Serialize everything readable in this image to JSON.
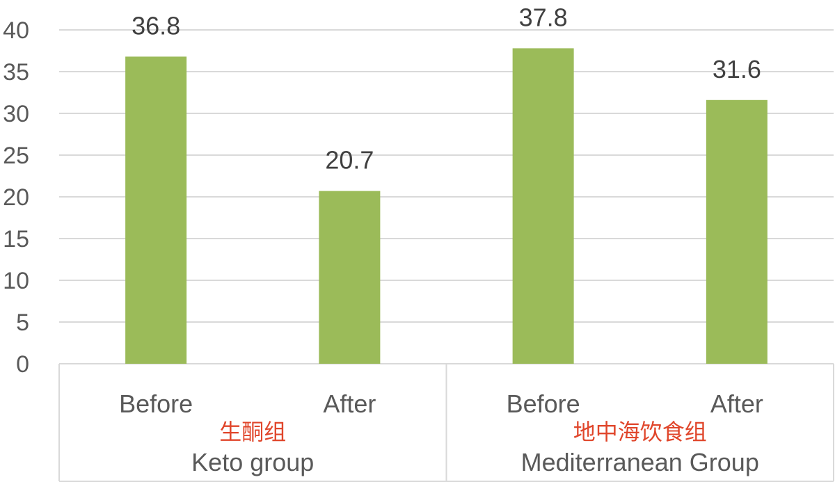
{
  "chart_data": {
    "type": "bar",
    "ylim": [
      0,
      40
    ],
    "yticks": [
      0,
      5,
      10,
      15,
      20,
      25,
      30,
      35,
      40
    ],
    "grid": true,
    "legend": "none",
    "groups": [
      {
        "name_cn": "生酮组",
        "name_en": "Keto group",
        "categories": [
          "Before",
          "After"
        ],
        "values": [
          36.8,
          20.7
        ]
      },
      {
        "name_cn": "地中海饮食组",
        "name_en": "Mediterranean Group",
        "categories": [
          "Before",
          "After"
        ],
        "values": [
          37.8,
          31.6
        ]
      }
    ]
  },
  "colors": {
    "bar": "#9BBB59",
    "grid": "#D9D9D9",
    "group_cn_text": "#E0462B"
  }
}
